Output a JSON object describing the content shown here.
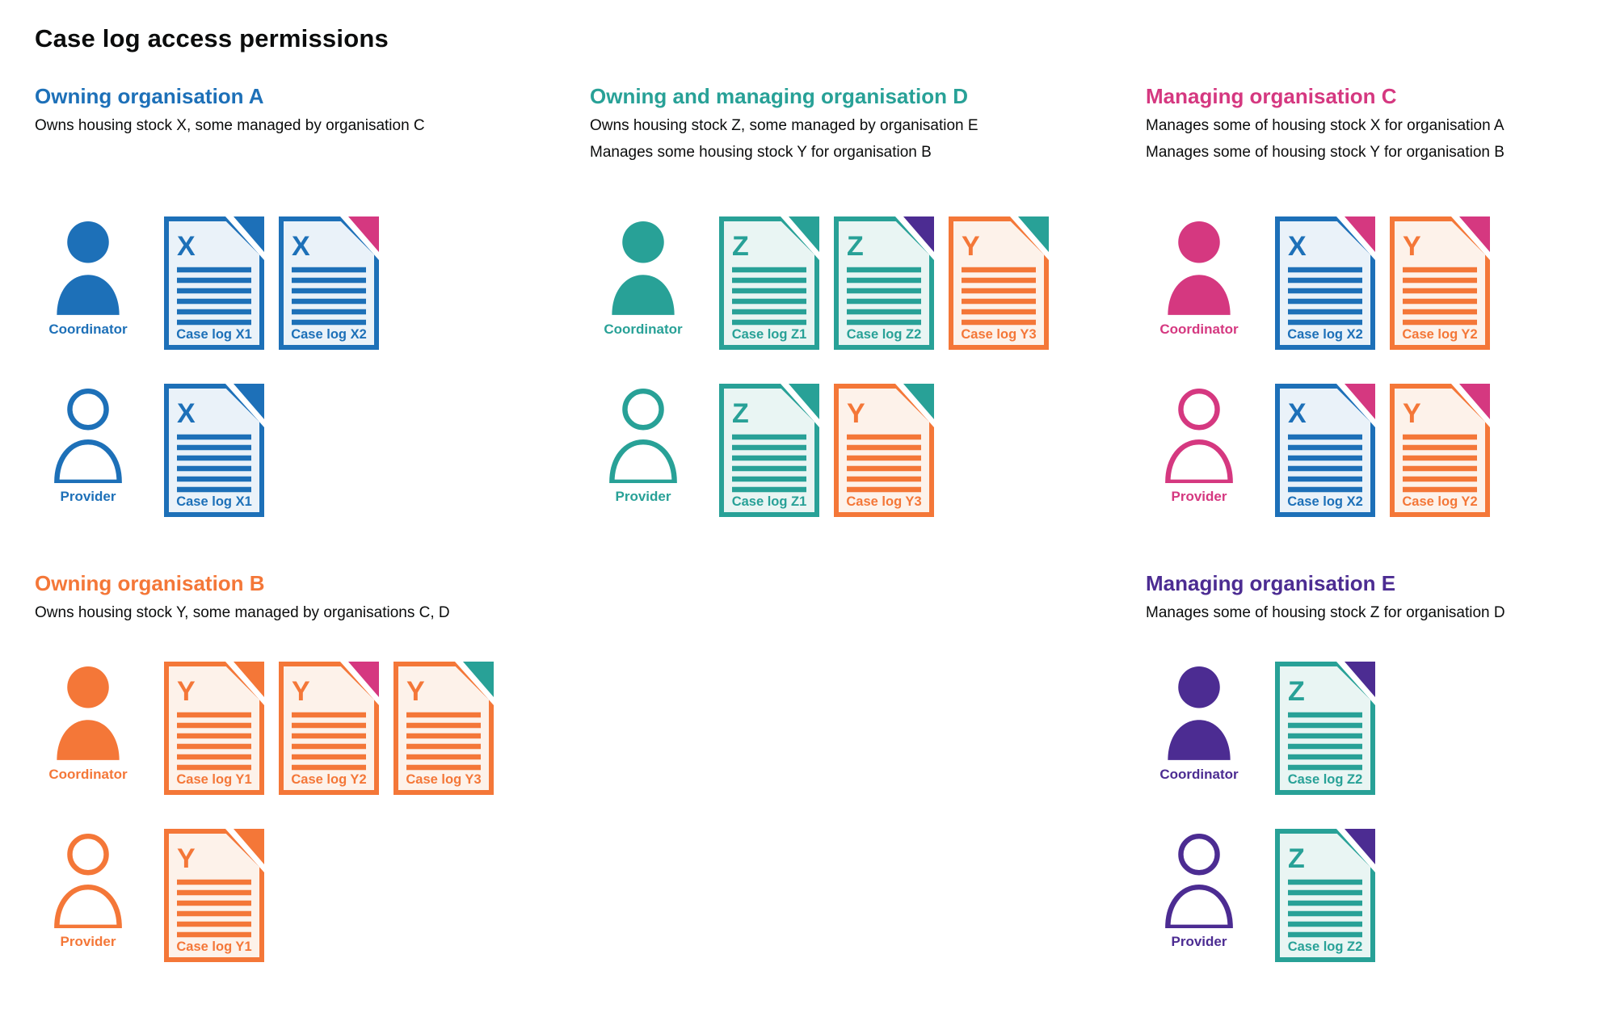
{
  "page": {
    "title": "Case log access permissions"
  },
  "palette": {
    "blue": "#1d70b8",
    "teal": "#28a197",
    "pink": "#d53880",
    "orange": "#f47738",
    "purple": "#4c2c92",
    "text": "#0b0c0c",
    "blue_tint": "#eaf2f9",
    "teal_tint": "#e9f5f3",
    "orange_tint": "#fdf2ea"
  },
  "sections": [
    {
      "id": "org-a",
      "title": "Owning organisation A",
      "color": "blue",
      "description": [
        "Owns housing stock X, some managed by organisation C"
      ],
      "rows": [
        {
          "role": "Coordinator",
          "person_style": "filled",
          "docs": [
            {
              "letter": "X",
              "label": "Case log X1",
              "color": "blue",
              "corner": "blue"
            },
            {
              "letter": "X",
              "label": "Case log X2",
              "color": "blue",
              "corner": "pink"
            }
          ]
        },
        {
          "role": "Provider",
          "person_style": "outline",
          "docs": [
            {
              "letter": "X",
              "label": "Case log X1",
              "color": "blue",
              "corner": "blue"
            }
          ]
        }
      ]
    },
    {
      "id": "org-d",
      "title": "Owning and managing organisation D",
      "color": "teal",
      "description": [
        "Owns housing stock Z, some managed by organisation E",
        "Manages some housing stock Y for organisation B"
      ],
      "rows": [
        {
          "role": "Coordinator",
          "person_style": "filled",
          "docs": [
            {
              "letter": "Z",
              "label": "Case log Z1",
              "color": "teal",
              "corner": "teal"
            },
            {
              "letter": "Z",
              "label": "Case log Z2",
              "color": "teal",
              "corner": "purple"
            },
            {
              "letter": "Y",
              "label": "Case log Y3",
              "color": "orange",
              "corner": "teal"
            }
          ]
        },
        {
          "role": "Provider",
          "person_style": "outline",
          "docs": [
            {
              "letter": "Z",
              "label": "Case log Z1",
              "color": "teal",
              "corner": "teal"
            },
            {
              "letter": "Y",
              "label": "Case log Y3",
              "color": "orange",
              "corner": "teal"
            }
          ]
        }
      ]
    },
    {
      "id": "org-c",
      "title": "Managing organisation C",
      "color": "pink",
      "description": [
        "Manages some of housing stock X for organisation A",
        "Manages some of housing stock Y for organisation B"
      ],
      "rows": [
        {
          "role": "Coordinator",
          "person_style": "filled",
          "docs": [
            {
              "letter": "X",
              "label": "Case log X2",
              "color": "blue",
              "corner": "pink"
            },
            {
              "letter": "Y",
              "label": "Case log Y2",
              "color": "orange",
              "corner": "pink"
            }
          ]
        },
        {
          "role": "Provider",
          "person_style": "outline",
          "docs": [
            {
              "letter": "X",
              "label": "Case log X2",
              "color": "blue",
              "corner": "pink"
            },
            {
              "letter": "Y",
              "label": "Case log Y2",
              "color": "orange",
              "corner": "pink"
            }
          ]
        }
      ]
    },
    {
      "id": "org-b",
      "title": "Owning organisation B",
      "color": "orange",
      "description": [
        "Owns housing stock Y, some managed by organisations C, D"
      ],
      "rows": [
        {
          "role": "Coordinator",
          "person_style": "filled",
          "docs": [
            {
              "letter": "Y",
              "label": "Case log Y1",
              "color": "orange",
              "corner": "orange"
            },
            {
              "letter": "Y",
              "label": "Case log Y2",
              "color": "orange",
              "corner": "pink"
            },
            {
              "letter": "Y",
              "label": "Case log Y3",
              "color": "orange",
              "corner": "teal"
            }
          ]
        },
        {
          "role": "Provider",
          "person_style": "outline",
          "docs": [
            {
              "letter": "Y",
              "label": "Case log Y1",
              "color": "orange",
              "corner": "orange"
            }
          ]
        }
      ]
    },
    {
      "id": "org-e",
      "title": "Managing organisation E",
      "color": "purple",
      "description": [
        "Manages some of housing stock Z for organisation D"
      ],
      "rows": [
        {
          "role": "Coordinator",
          "person_style": "filled",
          "docs": [
            {
              "letter": "Z",
              "label": "Case log Z2",
              "color": "teal",
              "corner": "purple"
            }
          ]
        },
        {
          "role": "Provider",
          "person_style": "outline",
          "docs": [
            {
              "letter": "Z",
              "label": "Case log Z2",
              "color": "teal",
              "corner": "purple"
            }
          ]
        }
      ]
    }
  ]
}
